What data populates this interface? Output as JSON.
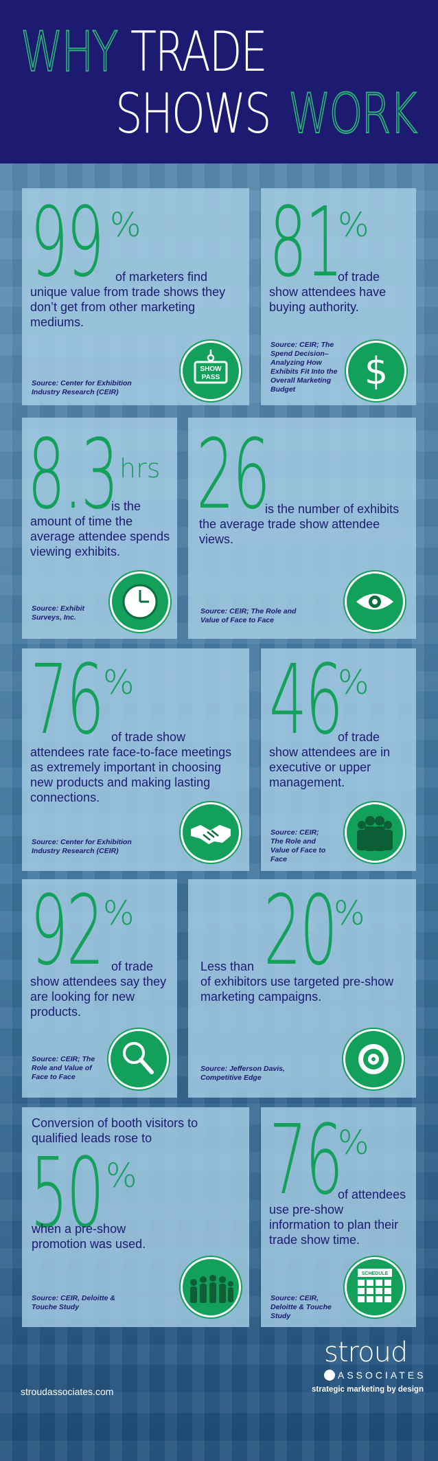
{
  "header": {
    "word_why": "WHY",
    "word_trade": "TRADE",
    "word_shows": "SHOWS",
    "word_work": "WORK"
  },
  "stats": [
    {
      "number": "99",
      "unit": "%",
      "text": "of marketers find unique value from trade shows they don’t get from other marketing mediums.",
      "source": "Source: Center for Exhibition Industry Research (CEIR)",
      "icon": "show-pass-icon",
      "icon_label": "SHOW PASS"
    },
    {
      "number": "81",
      "unit": "%",
      "text": "of trade show attendees have buying authority.",
      "source": "Source: CEIR; The Spend Decision–Analyzing How Exhibits Fit Into the Overall Marketing Budget",
      "icon": "dollar-icon"
    },
    {
      "number": "8.3",
      "unit": "hrs",
      "text": "is the amount of time the average attendee spends viewing exhibits.",
      "source": "Source: Exhibit Surveys, Inc.",
      "icon": "clock-icon"
    },
    {
      "number": "26",
      "unit": "",
      "text": "is the number of exhibits the average trade show attendee views.",
      "source": "Source: CEIR; The Role and Value of Face to Face",
      "icon": "eye-icon"
    },
    {
      "number": "76",
      "unit": "%",
      "text": "of trade show attendees rate face-to-face meetings as extremely important in choosing new products and making lasting connections.",
      "source": "Source: Center for Exhibition Industry Research (CEIR)",
      "icon": "handshake-icon"
    },
    {
      "number": "46",
      "unit": "%",
      "text": "of trade show attendees are in executive or upper management.",
      "source": "Source: CEIR; The Role and Value of Face to Face",
      "icon": "executives-icon"
    },
    {
      "number": "92",
      "unit": "%",
      "text": "of trade show attendees say they are looking for new products.",
      "source": "Source: CEIR; The Role and Value of Face to Face",
      "icon": "magnifier-icon"
    },
    {
      "prefix": "Less than",
      "number": "20",
      "unit": "%",
      "text": "of exhibitors use targeted pre-show marketing campaigns.",
      "source": "Source: Jefferson Davis, Competitive Edge",
      "icon": "target-icon"
    },
    {
      "prefix": "Conversion of booth visitors to qualified leads rose to",
      "number": "50",
      "unit": "%",
      "text": "when a pre-show promotion was used.",
      "source": "Source: CEIR, Deloitte & Touche Study",
      "icon": "crowd-icon"
    },
    {
      "number": "76",
      "unit": "%",
      "text": "of attendees use pre-show information to plan their trade show time.",
      "source": "Source: CEIR, Deloitte & Touche Study",
      "icon": "schedule-icon",
      "icon_label": "SCHEDULE"
    }
  ],
  "footer": {
    "url": "stroudassociates.com",
    "logo_name": "stroud",
    "logo_sub": "ASSOCIATES",
    "tagline": "strategic marketing by design"
  }
}
